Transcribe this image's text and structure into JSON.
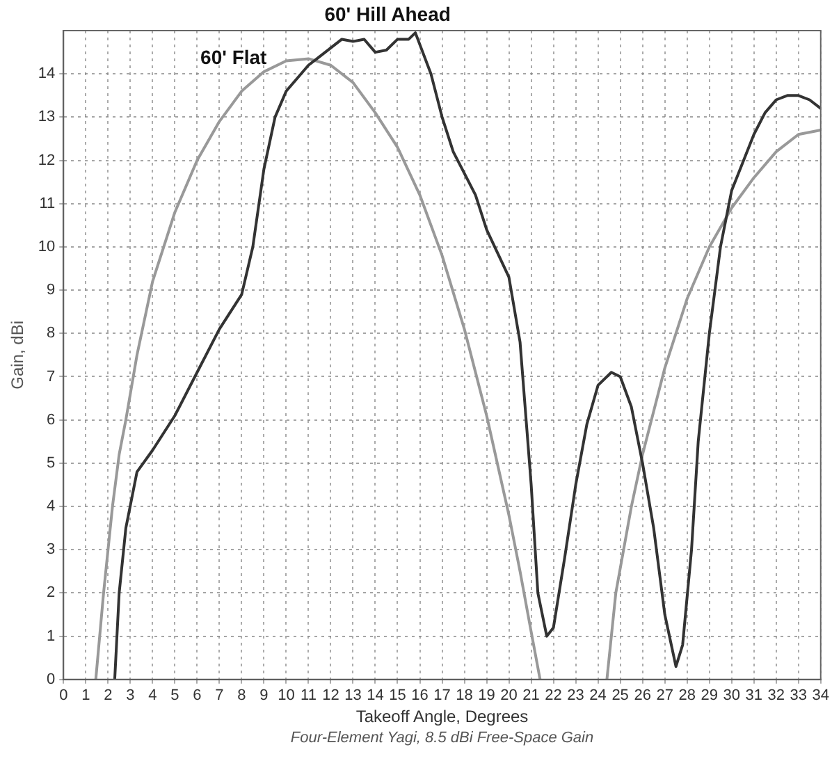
{
  "chart_data": {
    "type": "line",
    "xlabel": "Takeoff Angle, Degrees",
    "ylabel": "Gain, dBi",
    "annotations": [
      "Four-Element Yagi, 8.5 dBi Free-Space Gain"
    ],
    "xlim": [
      0,
      34
    ],
    "xticks": [
      0,
      1,
      2,
      3,
      4,
      5,
      6,
      7,
      8,
      9,
      10,
      11,
      12,
      13,
      14,
      15,
      16,
      17,
      18,
      19,
      20,
      21,
      22,
      23,
      24,
      25,
      26,
      27,
      28,
      29,
      30,
      31,
      32,
      33,
      34
    ],
    "ylim": [
      0,
      15
    ],
    "yticks": [
      0,
      1,
      2,
      3,
      4,
      5,
      6,
      7,
      8,
      9,
      10,
      11,
      12,
      13,
      14
    ],
    "grid": true,
    "legend": false,
    "marker": "none",
    "line_style": "solid",
    "series": [
      {
        "name": "60' Hill Ahead",
        "color": "#333333",
        "x": [
          2.3,
          2.5,
          2.8,
          3.3,
          4,
          5,
          6,
          7,
          8,
          8.5,
          9,
          9.5,
          10,
          11,
          11.5,
          12,
          12.5,
          13,
          13.5,
          14,
          14.5,
          15,
          15.5,
          15.8,
          16.5,
          17,
          17.5,
          18.5,
          19,
          20,
          20.5,
          21,
          21.3,
          21.7,
          22,
          22.5,
          23,
          23.5,
          24,
          24.6,
          25,
          25.5,
          26,
          26.5,
          27,
          27.5,
          27.8,
          28.2,
          28.5,
          29,
          29.5,
          30,
          31,
          31.5,
          32,
          32.5,
          33,
          33.5,
          34
        ],
        "values": [
          0,
          2,
          3.5,
          4.8,
          5.3,
          6.1,
          7.1,
          8.1,
          8.9,
          10,
          11.8,
          13,
          13.6,
          14.2,
          14.4,
          14.6,
          14.8,
          14.75,
          14.8,
          14.5,
          14.55,
          14.8,
          14.8,
          14.95,
          14,
          13,
          12.2,
          11.2,
          10.4,
          9.3,
          7.8,
          4.5,
          2,
          1,
          1.2,
          2.8,
          4.5,
          5.9,
          6.8,
          7.1,
          7,
          6.3,
          5,
          3.5,
          1.5,
          0.3,
          0.8,
          3,
          5.5,
          8,
          10,
          11.3,
          12.6,
          13.1,
          13.4,
          13.5,
          13.5,
          13.4,
          13.2
        ]
      },
      {
        "name": "60' Flat",
        "color": "#999999",
        "x": [
          1.45,
          1.8,
          2.2,
          2.5,
          2.8,
          3.3,
          4,
          5,
          6,
          7,
          8,
          9,
          10,
          11,
          12,
          13,
          14,
          15,
          16,
          17,
          18,
          19,
          20,
          20.5,
          21,
          21.4,
          23,
          24.4,
          24.8,
          25.5,
          26,
          27,
          28,
          29,
          30,
          31,
          32,
          33,
          34
        ],
        "values": [
          0,
          2,
          4,
          5.2,
          6,
          7.5,
          9.2,
          10.8,
          12,
          12.9,
          13.6,
          14.05,
          14.3,
          14.35,
          14.2,
          13.8,
          13.1,
          12.3,
          11.2,
          9.8,
          8.1,
          6.1,
          3.8,
          2.5,
          1.1,
          0,
          null,
          0,
          2,
          4,
          5.2,
          7.2,
          8.8,
          10,
          10.9,
          11.6,
          12.2,
          12.6,
          12.7
        ]
      }
    ]
  }
}
